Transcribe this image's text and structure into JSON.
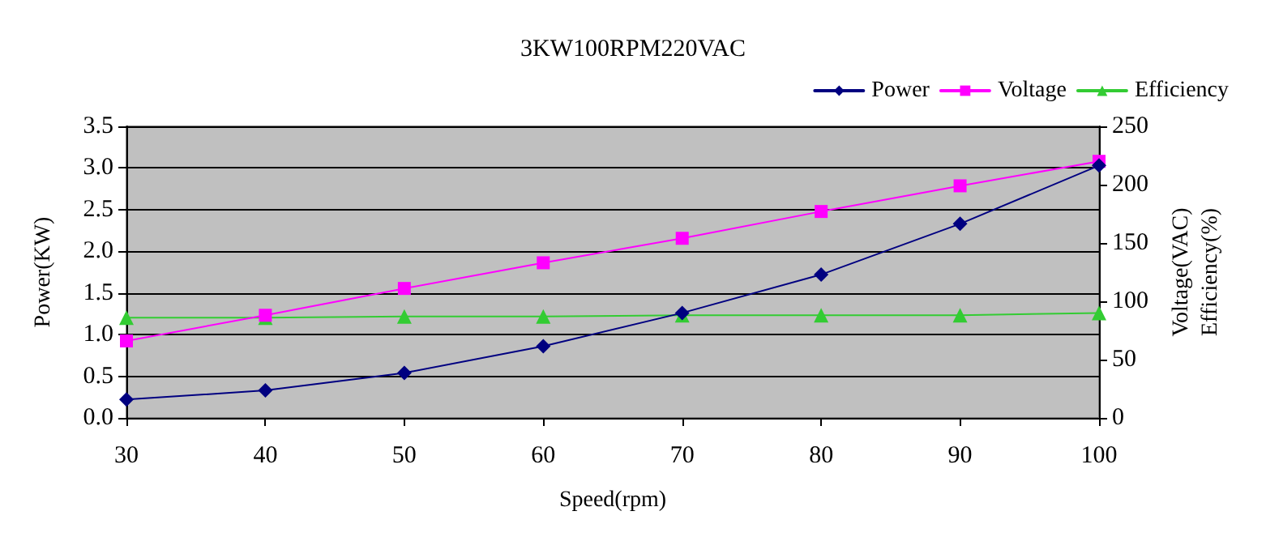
{
  "chart_data": {
    "type": "line",
    "title": "3KW100RPM220VAC",
    "xlabel": "Speed(rpm)",
    "ylabel": "Power(KW)",
    "y2label": "Voltage(VAC)\nEfficiency(%)",
    "x": [
      30,
      40,
      50,
      60,
      70,
      80,
      90,
      100
    ],
    "xlim": [
      30,
      100
    ],
    "xticks": [
      30,
      40,
      50,
      60,
      70,
      80,
      90,
      100
    ],
    "ylim": [
      0,
      3.5
    ],
    "yticks": [
      {
        "value": 0,
        "label": "0.0"
      },
      {
        "value": 0.5,
        "label": "0.5"
      },
      {
        "value": 1,
        "label": "1.0"
      },
      {
        "value": 1.5,
        "label": "1.5"
      },
      {
        "value": 2,
        "label": "2.0"
      },
      {
        "value": 2.5,
        "label": "2.5"
      },
      {
        "value": 3,
        "label": "3.0"
      },
      {
        "value": 3.5,
        "label": "3.5"
      }
    ],
    "y2lim": [
      0,
      250
    ],
    "y2ticks": [
      0,
      50,
      100,
      150,
      200,
      250
    ],
    "grid": "y",
    "legend": "top right",
    "series": [
      {
        "name": "Power",
        "color": "#000080",
        "marker": "diamond",
        "values": [
          0.22,
          0.33,
          0.54,
          0.86,
          1.26,
          1.72,
          2.33,
          3.03
        ]
      },
      {
        "name": "Voltage",
        "color": "#ff00ff",
        "marker": "square",
        "axis": "y2",
        "values": [
          66,
          88,
          111,
          133,
          154,
          177,
          199,
          220
        ]
      },
      {
        "name": "Efficiency",
        "color": "#33cc33",
        "marker": "triangle",
        "axis": "y2",
        "values": [
          86,
          86,
          87,
          87,
          88,
          88,
          88,
          90
        ]
      }
    ]
  }
}
